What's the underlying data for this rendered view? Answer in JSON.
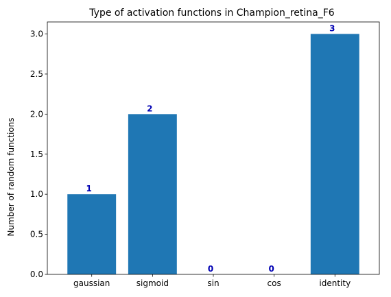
{
  "chart_data": {
    "type": "bar",
    "title": "Type of activation functions in Champion_retina_F6",
    "xlabel": "",
    "ylabel": "Number of random functions",
    "categories": [
      "gaussian",
      "sigmoid",
      "sin",
      "cos",
      "identity"
    ],
    "values": [
      1,
      2,
      0,
      0,
      3
    ],
    "data_labels": [
      "1",
      "2",
      "0",
      "0",
      "3"
    ],
    "ylim": [
      0,
      3.15
    ],
    "yticks": [
      0.0,
      0.5,
      1.0,
      1.5,
      2.0,
      2.5,
      3.0
    ],
    "ytick_labels": [
      "0.0",
      "0.5",
      "1.0",
      "1.5",
      "2.0",
      "2.5",
      "3.0"
    ],
    "grid": false,
    "colors": {
      "bar": "#1f77b4",
      "data_label": "#0000b3",
      "axis": "#000000"
    }
  }
}
